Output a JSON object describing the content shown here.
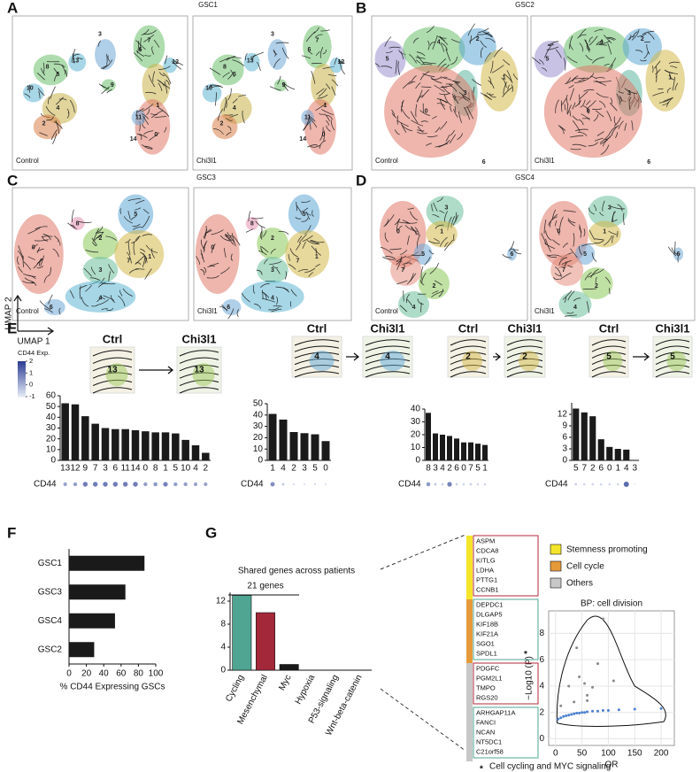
{
  "panel_labels": [
    "A",
    "B",
    "C",
    "D",
    "E",
    "F",
    "G"
  ],
  "umaps": {
    "A": {
      "title": "GSC1",
      "conditions": [
        "Control",
        "Chi3l1"
      ],
      "clusters": [
        "8",
        "5",
        "13",
        "10",
        "4",
        "2",
        "3",
        "9",
        "7",
        "1",
        "12",
        "11",
        "14",
        "0",
        "6"
      ]
    },
    "B": {
      "title": "GSC2",
      "conditions": [
        "Control",
        "Chi3l1"
      ],
      "clusters": [
        "5",
        "4",
        "2",
        "3",
        "1",
        "0",
        "6"
      ]
    },
    "C": {
      "title": "GSC3",
      "conditions": [
        "Control",
        "Chi3l1"
      ],
      "clusters": [
        "8",
        "5",
        "0",
        "2",
        "7",
        "1",
        "3",
        "4",
        "6"
      ]
    },
    "D": {
      "title": "GSC4",
      "conditions": [
        "Control",
        "Chi3l1"
      ],
      "clusters": [
        "3",
        "0",
        "1",
        "5",
        "6",
        "7",
        "2",
        "4"
      ]
    }
  },
  "umap_axes": [
    "UMAP 2",
    "UMAP 1"
  ],
  "colorbar": {
    "title": "CD44 Exp.",
    "ticks": [
      2,
      1,
      0,
      -1
    ]
  },
  "chart_data": [
    {
      "type": "bar",
      "ctrl_label": "Ctrl",
      "treated_label": "Chi3l1",
      "inset_label": "13",
      "row_label": "CD44",
      "categories": [
        "13",
        "12",
        "9",
        "7",
        "3",
        "6",
        "11",
        "14",
        "0",
        "8",
        "1",
        "5",
        "10",
        "4",
        "2"
      ],
      "values": [
        53,
        52,
        41,
        34,
        30,
        29,
        29,
        28,
        27,
        26,
        26,
        25,
        19,
        14,
        7
      ],
      "cd44": [
        0.2,
        0.3,
        0.9,
        0.9,
        0.9,
        0.9,
        0.9,
        0.9,
        0.3,
        0.4,
        0.8,
        0.3,
        0.3,
        0.2,
        0.2
      ],
      "color": "#1a1a1a",
      "ylim": [
        0,
        60
      ],
      "yticks": [
        0,
        10,
        20,
        30,
        40,
        50,
        60
      ]
    },
    {
      "type": "bar",
      "ctrl_label": "Ctrl",
      "treated_label": "Chi3l1",
      "inset_label": "4",
      "row_label": "CD44",
      "categories": [
        "1",
        "4",
        "2",
        "3",
        "5",
        "0"
      ],
      "values": [
        41,
        36,
        25,
        24,
        23,
        17
      ],
      "cd44": [
        0.6,
        -0.5,
        -0.8,
        -0.9,
        -0.8,
        -0.9
      ],
      "color": "#1a1a1a",
      "ylim": [
        0,
        50
      ],
      "yticks": [
        0,
        10,
        20,
        30,
        40,
        50
      ]
    },
    {
      "type": "bar",
      "ctrl_label": "Ctrl",
      "treated_label": "Chi3l1",
      "inset_label": "2",
      "row_label": "CD44",
      "categories": [
        "8",
        "3",
        "4",
        "2",
        "6",
        "0",
        "7",
        "5",
        "1"
      ],
      "values": [
        37,
        21,
        20,
        19,
        17,
        14,
        14,
        13,
        12
      ],
      "cd44": [
        0.4,
        -0.5,
        -0.6,
        0.8,
        -0.6,
        -0.7,
        -0.6,
        -0.7,
        -0.7
      ],
      "color": "#1a1a1a",
      "ylim": [
        0,
        40
      ],
      "yticks": [
        0,
        10,
        20,
        30,
        40
      ]
    },
    {
      "type": "bar",
      "ctrl_label": "Ctrl",
      "treated_label": "Chi3l1",
      "inset_label": "5",
      "row_label": "CD44",
      "categories": [
        "5",
        "7",
        "2",
        "6",
        "0",
        "1",
        "4",
        "3"
      ],
      "values": [
        13.5,
        12.5,
        11.5,
        5.5,
        3.5,
        3,
        2.8,
        0
      ],
      "cd44": [
        -0.6,
        -0.7,
        -0.7,
        -0.7,
        -0.7,
        -0.7,
        1.2,
        -1
      ],
      "color": "#1a1a1a",
      "ylim": [
        0,
        15
      ],
      "yticks": [
        0,
        3,
        6,
        9,
        12
      ]
    },
    {
      "type": "barh",
      "x_label": "% CD44 Expressing GSCs",
      "categories": [
        "GSC1",
        "GSC3",
        "GSC4",
        "GSC2"
      ],
      "values": [
        87,
        65,
        53,
        29
      ],
      "color": "#1a1a1a",
      "xlim": [
        0,
        100
      ],
      "xticks": [
        0,
        20,
        40,
        60,
        80,
        100
      ]
    },
    {
      "type": "bar",
      "title": "Shared genes across patients",
      "annotation": "21 genes",
      "categories": [
        "Cycling",
        "Mesenchymal",
        "Myc",
        "Hypoxia",
        "P53-signaling",
        "Wnt-beta-catenin"
      ],
      "values": [
        13,
        10,
        1,
        0,
        0,
        0
      ],
      "colors": [
        "#4fa592",
        "#a3283a",
        "#1a1a1a",
        "#1a1a1a",
        "#1a1a1a",
        "#1a1a1a"
      ],
      "ylim": [
        0,
        13.5
      ],
      "yticks": [
        0,
        4,
        8,
        12
      ]
    },
    {
      "type": "scatter",
      "title": "BP: cell division",
      "x_label": "OR",
      "y_label": "−Log10 (P)",
      "xlim": [
        -13,
        225
      ],
      "ylim": [
        -0.5,
        9.7
      ],
      "xticks": [
        0,
        50,
        100,
        150,
        200
      ],
      "yticks": [
        0,
        2,
        4,
        6,
        8
      ],
      "grid": true,
      "series": [
        {
          "color": "#4a7fd0",
          "x": [
            5,
            10,
            15,
            20,
            25,
            30,
            35,
            40,
            45,
            50,
            55,
            60,
            70,
            80,
            90,
            100,
            120,
            150,
            200
          ],
          "values": [
            1.5,
            1.6,
            1.7,
            1.75,
            1.8,
            1.85,
            1.9,
            1.95,
            1.95,
            2.0,
            2.0,
            2.05,
            2.1,
            2.1,
            2.15,
            2.15,
            2.2,
            2.25,
            2.3
          ]
        },
        {
          "color": "#888888",
          "x": [
            10,
            25,
            35,
            40,
            45,
            55,
            60,
            60,
            70,
            80,
            90,
            110
          ],
          "values": [
            2.5,
            4.0,
            2.8,
            6.9,
            4.7,
            4.2,
            2.9,
            3.3,
            3.9,
            5.7,
            9.1,
            4.4
          ]
        }
      ]
    }
  ],
  "gene_list": [
    [
      "ASPM",
      "CDCA8",
      "KITLG",
      "LDHA",
      "PTTG1",
      "CCNB1"
    ],
    [
      "DEPDC1",
      "DLGAP5",
      "KIF18B",
      "KIF21A",
      "SGO1",
      "SPDL1"
    ],
    [
      "PDGFC",
      "PGM2L1",
      "TMPO",
      "RGS20"
    ],
    [
      "ARHGAP11A",
      "FANCI",
      "NCAN",
      "NT5DC1",
      "C21orf58"
    ]
  ],
  "gene_legend": [
    {
      "label": "Stemness promoting",
      "color": "#f5e52a"
    },
    {
      "label": "Cell cycle",
      "color": "#e59a3a"
    },
    {
      "label": "Others",
      "color": "#c8c8c8"
    }
  ],
  "footnote": {
    "symbol": "*",
    "text": "Cell cycling and MYC signaling"
  }
}
